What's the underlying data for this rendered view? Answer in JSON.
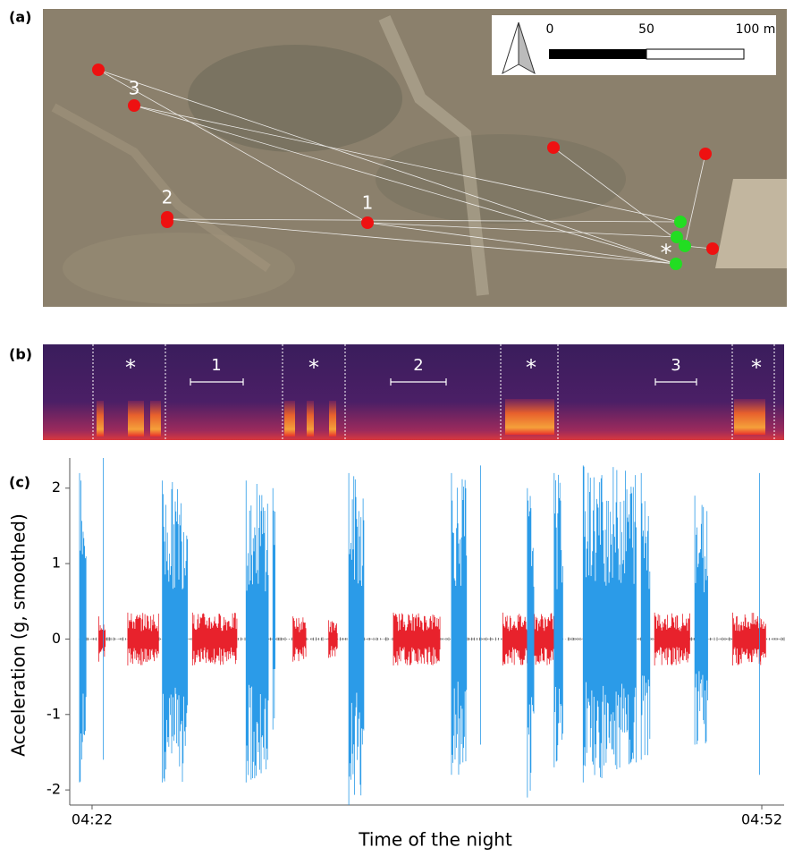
{
  "map": {
    "panel_label": "(a)",
    "scale_labels": [
      "0",
      "50",
      "100 m"
    ],
    "point_labels": [
      "1",
      "2",
      "3",
      "*"
    ]
  },
  "spectrogram": {
    "panel_label": "(b)",
    "segment_labels": [
      "*",
      "1",
      "*",
      "2",
      "*",
      "3",
      "*"
    ]
  },
  "chart_data": {
    "type": "bursts",
    "panel_label": "(c)",
    "y_label": "Acceleration (g, smoothed)",
    "x_label": "Time of the night",
    "xlim": [
      -1,
      31
    ],
    "xticks": [
      {
        "value": 0,
        "label": "04:22"
      },
      {
        "value": 30,
        "label": "04:52"
      }
    ],
    "ylim": [
      -2.2,
      2.4
    ],
    "yticks": [
      -2,
      -1,
      0,
      1,
      2
    ],
    "series": [
      {
        "color": "#e8222c",
        "start": [
          0.3,
          1.6,
          4.5,
          9.0,
          10.6,
          13.5,
          18.4,
          25.2,
          28.7
        ],
        "end": [
          0.6,
          3.0,
          6.5,
          9.6,
          11.0,
          15.6,
          20.8,
          26.8,
          30.2
        ],
        "high": [
          0.3,
          0.35,
          0.35,
          0.3,
          0.25,
          0.35,
          0.35,
          0.35,
          0.35
        ],
        "low": [
          -0.3,
          -0.35,
          -0.35,
          -0.3,
          -0.25,
          -0.35,
          -0.35,
          -0.35,
          -0.35
        ]
      },
      {
        "color": "#2b9be8",
        "start": [
          -0.56,
          0.5,
          3.15,
          6.9,
          8.1,
          11.5,
          16.1,
          17.4,
          19.5,
          20.7,
          22.0,
          24.6,
          27.0,
          29.9
        ],
        "end": [
          -0.24,
          0.5,
          4.3,
          7.9,
          8.2,
          12.2,
          16.8,
          17.4,
          19.8,
          21.1,
          24.4,
          25.0,
          27.6,
          29.9
        ],
        "high": [
          2.2,
          2.4,
          2.1,
          2.1,
          2.0,
          2.2,
          2.2,
          2.3,
          2.0,
          2.2,
          2.3,
          2.2,
          1.9,
          2.2
        ],
        "low": [
          -1.9,
          -1.6,
          -1.9,
          -1.9,
          -1.2,
          -2.2,
          -1.8,
          -1.4,
          -2.1,
          -1.7,
          -1.9,
          -1.6,
          -1.4,
          -1.8
        ]
      }
    ]
  }
}
